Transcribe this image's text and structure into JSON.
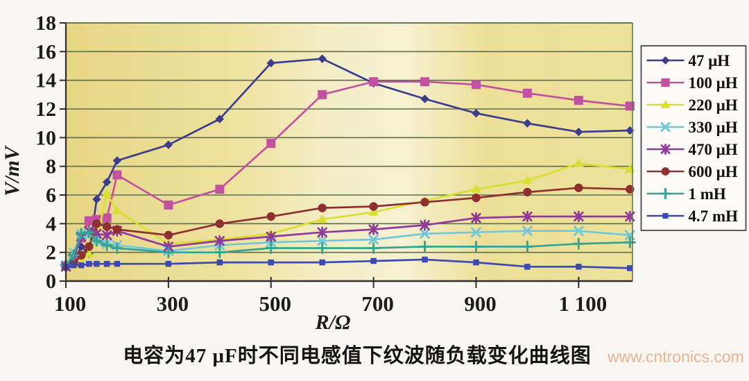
{
  "page": {
    "caption": "电容为47 μF时不同电感值下纹波随负载变化曲线图",
    "watermark": "www.cntronics.com"
  },
  "chart_data": {
    "type": "line",
    "title": "电容为47 μF时不同电感值下纹波随负载变化曲线图",
    "xlabel": "R/Ω",
    "ylabel": "V/mV",
    "xlim": [
      100,
      1205
    ],
    "ylim": [
      0,
      18
    ],
    "grid": "horizontal",
    "legend_position": "right",
    "x_ticks": [
      100,
      300,
      500,
      700,
      900,
      1100
    ],
    "x_tick_labels": [
      "100",
      "300",
      "500",
      "700",
      "900",
      "1 100"
    ],
    "y_ticks": [
      0,
      2,
      4,
      6,
      8,
      10,
      12,
      14,
      16,
      18
    ],
    "x": [
      100,
      115,
      130,
      145,
      160,
      180,
      200,
      300,
      400,
      500,
      600,
      700,
      800,
      900,
      1000,
      1100,
      1200
    ],
    "series": [
      {
        "name": "47 μH",
        "color": "#3c3c8c",
        "marker": "diamond",
        "values": [
          1.0,
          1.3,
          2.4,
          1.9,
          5.7,
          6.9,
          8.4,
          9.5,
          11.3,
          15.2,
          15.5,
          13.8,
          12.7,
          11.7,
          11.0,
          10.4,
          10.5
        ]
      },
      {
        "name": "100 μH",
        "color": "#c0529f",
        "marker": "square",
        "values": [
          1.1,
          1.6,
          3.0,
          4.2,
          4.3,
          4.4,
          7.4,
          5.3,
          6.4,
          9.6,
          13.0,
          13.9,
          13.9,
          13.7,
          13.1,
          12.6,
          12.2
        ]
      },
      {
        "name": "220 μH",
        "color": "#d9df31",
        "marker": "triangle",
        "values": [
          1.0,
          1.1,
          1.4,
          1.9,
          2.8,
          6.1,
          4.9,
          2.6,
          2.9,
          3.3,
          4.3,
          4.8,
          5.6,
          6.4,
          7.0,
          8.2,
          7.8
        ]
      },
      {
        "name": "330 μH",
        "color": "#72c8d8",
        "marker": "x",
        "values": [
          1.1,
          2.0,
          3.3,
          3.2,
          2.8,
          2.6,
          2.5,
          2.1,
          2.5,
          2.7,
          2.8,
          2.9,
          3.3,
          3.4,
          3.5,
          3.5,
          3.2
        ]
      },
      {
        "name": "470 μH",
        "color": "#90389c",
        "marker": "star",
        "values": [
          1.0,
          1.6,
          3.1,
          3.5,
          3.3,
          3.2,
          3.5,
          2.4,
          2.8,
          3.1,
          3.4,
          3.6,
          3.9,
          4.4,
          4.5,
          4.5,
          4.5
        ]
      },
      {
        "name": "600 μH",
        "color": "#8e3030",
        "marker": "circle",
        "values": [
          1.0,
          1.2,
          1.8,
          2.4,
          4.0,
          3.8,
          3.6,
          3.2,
          4.0,
          4.5,
          5.1,
          5.2,
          5.5,
          5.8,
          6.2,
          6.5,
          6.4
        ]
      },
      {
        "name": "1 mH",
        "color": "#35a493",
        "marker": "plus",
        "values": [
          1.1,
          1.8,
          3.3,
          3.4,
          2.8,
          2.5,
          2.3,
          2.0,
          2.0,
          2.3,
          2.3,
          2.3,
          2.4,
          2.4,
          2.4,
          2.6,
          2.7
        ]
      },
      {
        "name": "4.7 mH",
        "color": "#3c49b5",
        "marker": "square-small",
        "values": [
          1.0,
          1.1,
          1.1,
          1.2,
          1.2,
          1.2,
          1.2,
          1.2,
          1.3,
          1.3,
          1.3,
          1.4,
          1.5,
          1.3,
          1.0,
          1.0,
          0.9
        ]
      }
    ],
    "colors": {
      "plot_bg_left": "#e7d684",
      "plot_bg_mid": "#f5f0d0",
      "plot_bg_right": "#ece29c",
      "gridline": "#5f6e4e",
      "axis": "#2e2e2e",
      "legend_bg": "#fbfaf7",
      "legend_border": "#4a4a4a"
    }
  }
}
